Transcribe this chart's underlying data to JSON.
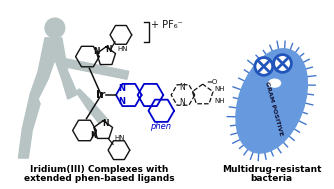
{
  "background_color": "#ffffff",
  "left_label_line1": "Iridium(III) Complexes with",
  "left_label_line2": "extended phen-based ligands",
  "right_label_line1": "Multidrug-resistant",
  "right_label_line2": "bacteria",
  "label_fontsize": 6.5,
  "label_fontweight": "bold",
  "human_color": "#b8c4c4",
  "molecule_color": "#111111",
  "phen_color": "#0000cc",
  "bacteria_body_color": "#6699dd",
  "bacteria_spike_color": "#4477cc",
  "bacteria_eye_white": "#ffffff",
  "bacteria_eye_blue": "#2255bb",
  "gram_text_color": "#111133",
  "pf6_text": "+ PF₆⁻",
  "phen_text": "phen",
  "gram_text": "GRAM POSITIVE"
}
